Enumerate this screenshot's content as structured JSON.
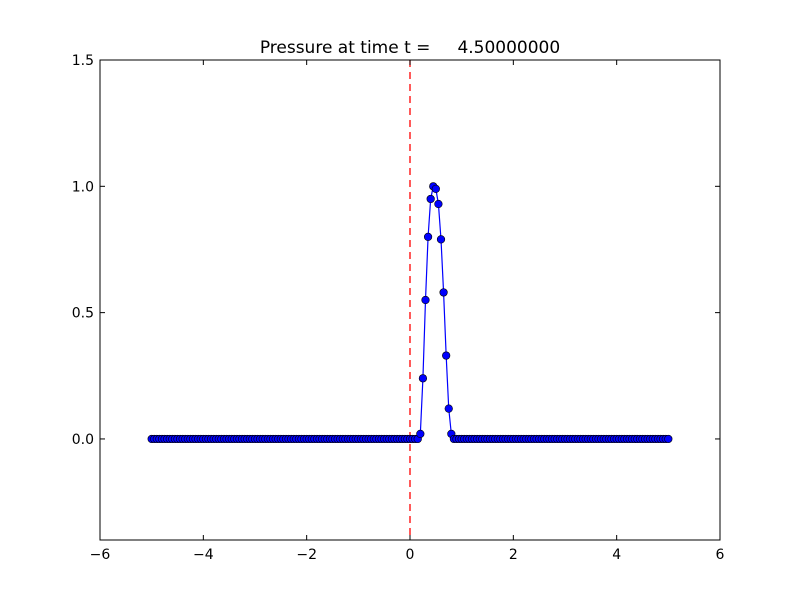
{
  "chart_data": {
    "type": "line",
    "title": "Pressure at time t =     4.50000000",
    "xlabel": "",
    "ylabel": "",
    "xlim": [
      -6,
      6
    ],
    "ylim": [
      -0.4,
      1.5
    ],
    "xticks": [
      -6,
      -4,
      -2,
      0,
      2,
      4,
      6
    ],
    "xtick_labels": [
      "−6",
      "−4",
      "−2",
      "0",
      "2",
      "4",
      "6"
    ],
    "yticks": [
      0.0,
      0.5,
      1.0,
      1.5
    ],
    "ytick_labels": [
      "0.0",
      "0.5",
      "1.0",
      "1.5"
    ],
    "grid": false,
    "legend": "none",
    "series": [
      {
        "x": [
          -5.0,
          -4.95,
          -4.9,
          -4.85,
          -4.8,
          -4.75,
          -4.7,
          -4.65,
          -4.6,
          -4.55,
          -4.5,
          -4.45,
          -4.4,
          -4.35,
          -4.3,
          -4.25,
          -4.2,
          -4.15,
          -4.1,
          -4.05,
          -4.0,
          -3.95,
          -3.9,
          -3.85,
          -3.8,
          -3.75,
          -3.7,
          -3.65,
          -3.6,
          -3.55,
          -3.5,
          -3.45,
          -3.4,
          -3.35,
          -3.3,
          -3.25,
          -3.2,
          -3.15,
          -3.1,
          -3.05,
          -3.0,
          -2.95,
          -2.9,
          -2.85,
          -2.8,
          -2.75,
          -2.7,
          -2.65,
          -2.6,
          -2.55,
          -2.5,
          -2.45,
          -2.4,
          -2.35,
          -2.3,
          -2.25,
          -2.2,
          -2.15,
          -2.1,
          -2.05,
          -2.0,
          -1.95,
          -1.9,
          -1.85,
          -1.8,
          -1.75,
          -1.7,
          -1.65,
          -1.6,
          -1.55,
          -1.5,
          -1.45,
          -1.4,
          -1.35,
          -1.3,
          -1.25,
          -1.2,
          -1.15,
          -1.1,
          -1.05,
          -1.0,
          -0.95,
          -0.9,
          -0.85,
          -0.8,
          -0.75,
          -0.7,
          -0.65,
          -0.6,
          -0.55,
          -0.5,
          -0.45,
          -0.4,
          -0.35,
          -0.3,
          -0.25,
          -0.2,
          -0.15,
          -0.1,
          -0.05,
          0.0,
          0.05,
          0.1,
          0.15,
          0.2,
          0.25,
          0.3,
          0.35,
          0.4,
          0.45,
          0.5,
          0.55,
          0.6,
          0.65,
          0.7,
          0.75,
          0.8,
          0.85,
          0.9,
          0.95,
          1.0,
          1.05,
          1.1,
          1.15,
          1.2,
          1.25,
          1.3,
          1.35,
          1.4,
          1.45,
          1.5,
          1.55,
          1.6,
          1.65,
          1.7,
          1.75,
          1.8,
          1.85,
          1.9,
          1.95,
          2.0,
          2.05,
          2.1,
          2.15,
          2.2,
          2.25,
          2.3,
          2.35,
          2.4,
          2.45,
          2.5,
          2.55,
          2.6,
          2.65,
          2.7,
          2.75,
          2.8,
          2.85,
          2.9,
          2.95,
          3.0,
          3.05,
          3.1,
          3.15,
          3.2,
          3.25,
          3.3,
          3.35,
          3.4,
          3.45,
          3.5,
          3.55,
          3.6,
          3.65,
          3.7,
          3.75,
          3.8,
          3.85,
          3.9,
          3.95,
          4.0,
          4.05,
          4.1,
          4.15,
          4.2,
          4.25,
          4.3,
          4.35,
          4.4,
          4.45,
          4.5,
          4.55,
          4.6,
          4.65,
          4.7,
          4.75,
          4.8,
          4.85,
          4.9,
          4.95,
          5.0
        ],
        "values": [
          0,
          0,
          0,
          0,
          0,
          0,
          0,
          0,
          0,
          0,
          0,
          0,
          0,
          0,
          0,
          0,
          0,
          0,
          0,
          0,
          0,
          0,
          0,
          0,
          0,
          0,
          0,
          0,
          0,
          0,
          0,
          0,
          0,
          0,
          0,
          0,
          0,
          0,
          0,
          0,
          0,
          0,
          0,
          0,
          0,
          0,
          0,
          0,
          0,
          0,
          0,
          0,
          0,
          0,
          0,
          0,
          0,
          0,
          0,
          0,
          0,
          0,
          0,
          0,
          0,
          0,
          0,
          0,
          0,
          0,
          0,
          0,
          0,
          0,
          0,
          0,
          0,
          0,
          0,
          0,
          0,
          0,
          0,
          0,
          0,
          0,
          0,
          0,
          0,
          0,
          0,
          0,
          0,
          0,
          0,
          0,
          0,
          0,
          0,
          0,
          0,
          0,
          0,
          0,
          0.02,
          0.24,
          0.55,
          0.8,
          0.95,
          1.0,
          0.99,
          0.93,
          0.79,
          0.58,
          0.33,
          0.12,
          0.02,
          0,
          0,
          0,
          0,
          0,
          0,
          0,
          0,
          0,
          0,
          0,
          0,
          0,
          0,
          0,
          0,
          0,
          0,
          0,
          0,
          0,
          0,
          0,
          0,
          0,
          0,
          0,
          0,
          0,
          0,
          0,
          0,
          0,
          0,
          0,
          0,
          0,
          0,
          0,
          0,
          0,
          0,
          0,
          0,
          0,
          0,
          0,
          0,
          0,
          0,
          0,
          0,
          0,
          0,
          0,
          0,
          0,
          0,
          0,
          0,
          0,
          0,
          0,
          0,
          0,
          0,
          0,
          0,
          0,
          0,
          0,
          0,
          0,
          0,
          0,
          0,
          0,
          0,
          0,
          0,
          0,
          0,
          0,
          0
        ],
        "color": "#0000ff",
        "marker": "circle"
      }
    ],
    "reference_line": {
      "x": 0,
      "style": "dashed",
      "color": "#ff0000"
    }
  }
}
